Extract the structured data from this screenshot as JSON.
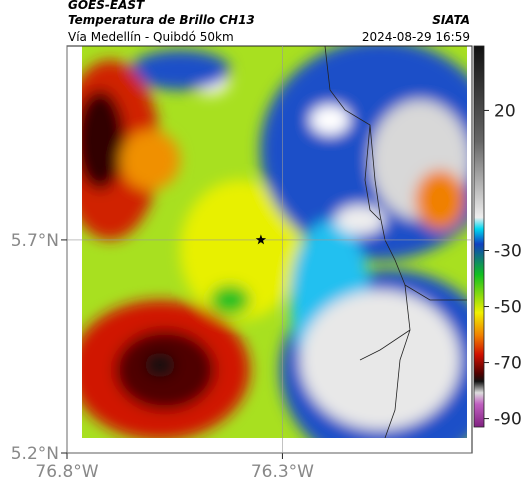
{
  "header": {
    "source": "GOES-EAST",
    "title": "Temperatura de Brillo CH13",
    "org": "SIATA",
    "region": "Vía Medellín - Quibdó 50km",
    "timestamp": "2024-08-29 16:59"
  },
  "map": {
    "xlim": [
      -76.8,
      -75.86
    ],
    "ylim": [
      5.2,
      6.155
    ],
    "xticks": [
      {
        "value": -76.8,
        "label": "76.8°W"
      },
      {
        "value": -76.3,
        "label": "76.3°W"
      }
    ],
    "yticks": [
      {
        "value": 5.2,
        "label": "5.2°N"
      },
      {
        "value": 5.7,
        "label": "5.7°N"
      }
    ],
    "grid": true,
    "marker": {
      "lon": -76.35,
      "lat": 5.7
    }
  },
  "colorbar": {
    "range": [
      -93,
      43
    ],
    "ticks": [
      20,
      -30,
      -50,
      -70,
      -90
    ]
  }
}
